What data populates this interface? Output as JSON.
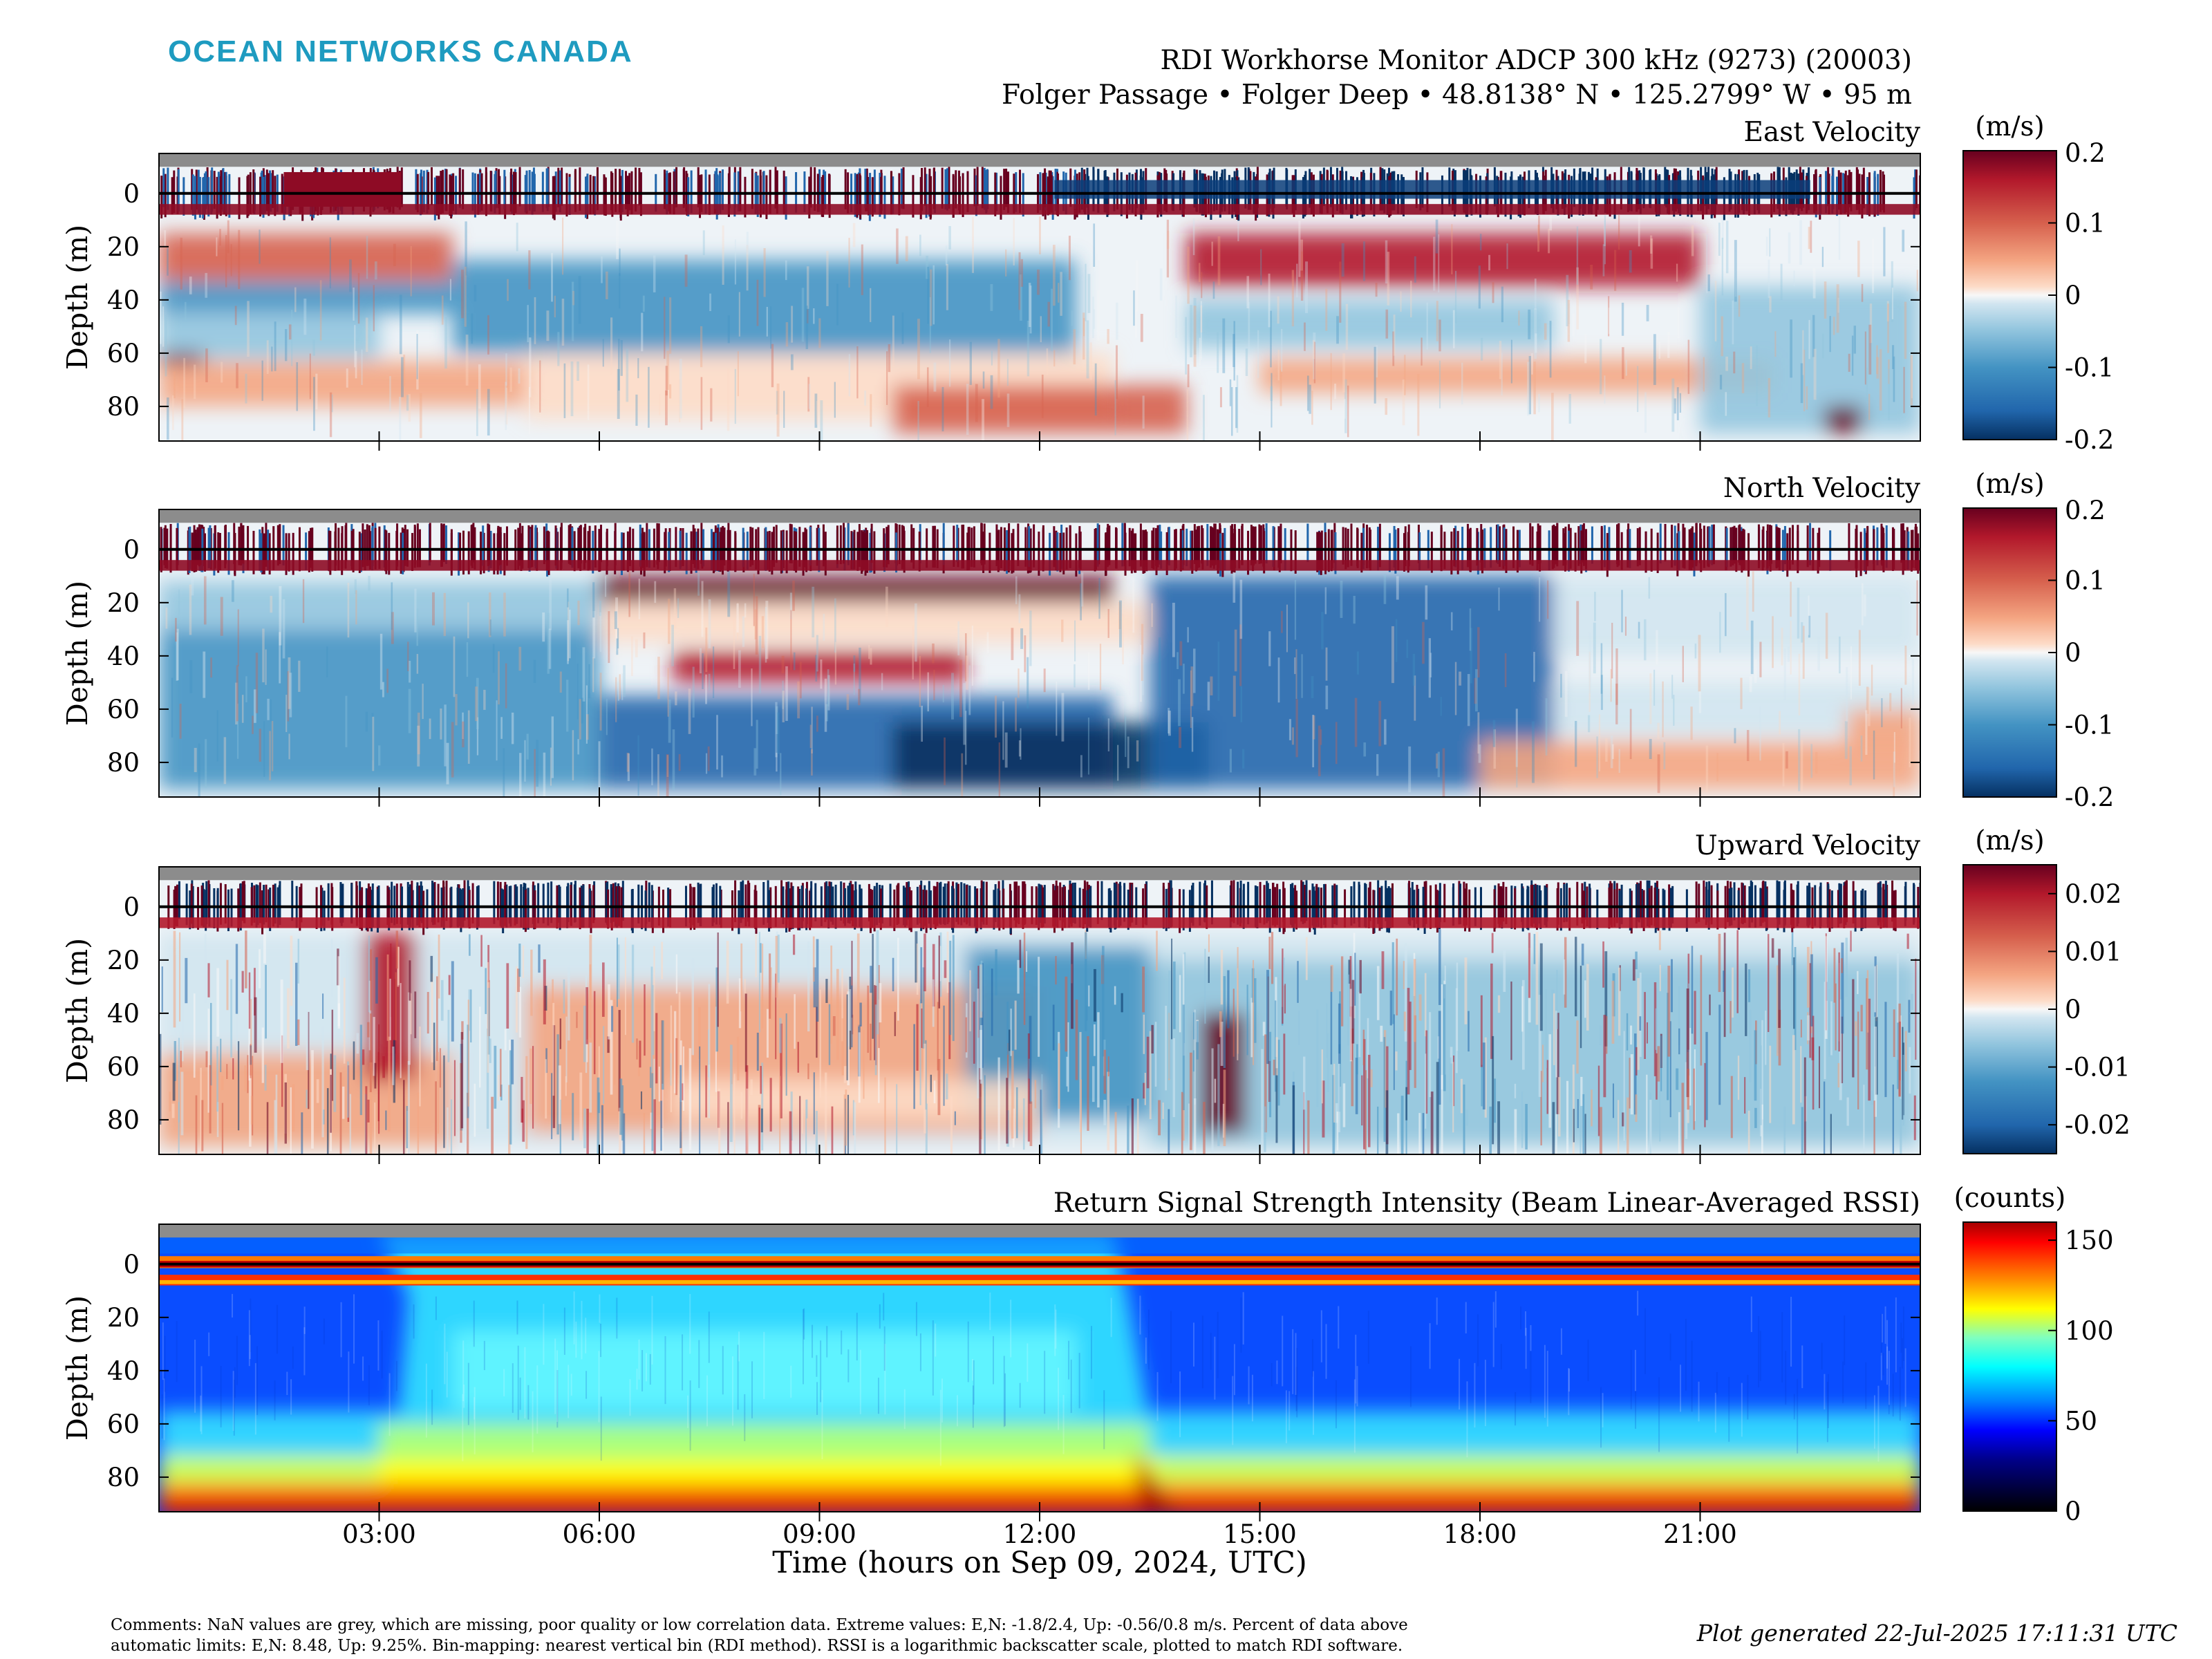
{
  "brand": {
    "name": "OCEAN NETWORKS CANADA",
    "color": "#1e9bc0"
  },
  "header": {
    "title": "RDI Workhorse Monitor ADCP 300 kHz (9273) (20003)",
    "subtitle": "Folger Passage • Folger Deep • 48.8138° N • 125.2799° W • 95 m"
  },
  "x_axis": {
    "label": "Time (hours on Sep 09, 2024, UTC)",
    "ticks": [
      "03:00",
      "06:00",
      "09:00",
      "12:00",
      "15:00",
      "18:00",
      "21:00"
    ],
    "tick_hours": [
      3,
      6,
      9,
      12,
      15,
      18,
      21
    ],
    "range_hours": [
      0,
      24
    ]
  },
  "y_axis": {
    "label": "Depth (m)",
    "ticks": [
      "0",
      "20",
      "40",
      "60",
      "80"
    ],
    "tick_values": [
      0,
      20,
      40,
      60,
      80
    ],
    "range": [
      -15,
      93
    ],
    "reversed": true
  },
  "colors": {
    "nan_grey": "#8c8c8c",
    "surface_line": "#000000",
    "frame": "#000000"
  },
  "panels": [
    {
      "title": "East Velocity",
      "unit": "(m/s)",
      "cbar_ticks": [
        "0.2",
        "0.1",
        "0",
        "-0.1",
        "-0.2"
      ],
      "cbar_values": [
        0.2,
        0.1,
        0,
        -0.1,
        -0.2
      ],
      "colormap": "red-blue"
    },
    {
      "title": "North Velocity",
      "unit": "(m/s)",
      "cbar_ticks": [
        "0.2",
        "0.1",
        "0",
        "-0.1",
        "-0.2"
      ],
      "cbar_values": [
        0.2,
        0.1,
        0,
        -0.1,
        -0.2
      ],
      "colormap": "red-blue"
    },
    {
      "title": "Upward Velocity",
      "unit": "(m/s)",
      "cbar_ticks": [
        "0.02",
        "0.01",
        "0",
        "-0.01",
        "-0.02"
      ],
      "cbar_values": [
        0.02,
        0.01,
        0,
        -0.01,
        -0.02
      ],
      "colormap": "red-blue"
    },
    {
      "title": "Return Signal Strength Intensity (Beam Linear-Averaged RSSI)",
      "unit": "(counts)",
      "cbar_ticks": [
        "150",
        "100",
        "50",
        "0"
      ],
      "cbar_values": [
        150,
        100,
        50,
        0
      ],
      "colormap": "jet"
    }
  ],
  "chart_data": [
    {
      "type": "heatmap",
      "title": "East Velocity",
      "xlabel": "Time (hours on Sep 09, 2024, UTC)",
      "ylabel": "Depth (m)",
      "clim": [
        -0.2,
        0.2
      ],
      "unit": "m/s"
    },
    {
      "type": "heatmap",
      "title": "North Velocity",
      "xlabel": "Time (hours on Sep 09, 2024, UTC)",
      "ylabel": "Depth (m)",
      "clim": [
        -0.2,
        0.2
      ],
      "unit": "m/s"
    },
    {
      "type": "heatmap",
      "title": "Upward Velocity",
      "xlabel": "Time (hours on Sep 09, 2024, UTC)",
      "ylabel": "Depth (m)",
      "clim": [
        -0.025,
        0.025
      ],
      "unit": "m/s"
    },
    {
      "type": "heatmap",
      "title": "Return Signal Strength Intensity (Beam Linear-Averaged RSSI)",
      "xlabel": "Time (hours on Sep 09, 2024, UTC)",
      "ylabel": "Depth (m)",
      "clim": [
        0,
        160
      ],
      "unit": "counts"
    }
  ],
  "footer": {
    "comments_line1": "Comments: NaN values are grey, which are missing, poor quality or low correlation data. Extreme values: E,N: -1.8/2.4, Up: -0.56/0.8 m/s. Percent of data above",
    "comments_line2": "automatic limits: E,N: 8.48, Up: 9.25%. Bin-mapping: nearest vertical bin (RDI method). RSSI is a logarithmic backscatter scale, plotted to match RDI software.",
    "generated": "Plot generated 22-Jul-2025 17:11:31 UTC"
  }
}
